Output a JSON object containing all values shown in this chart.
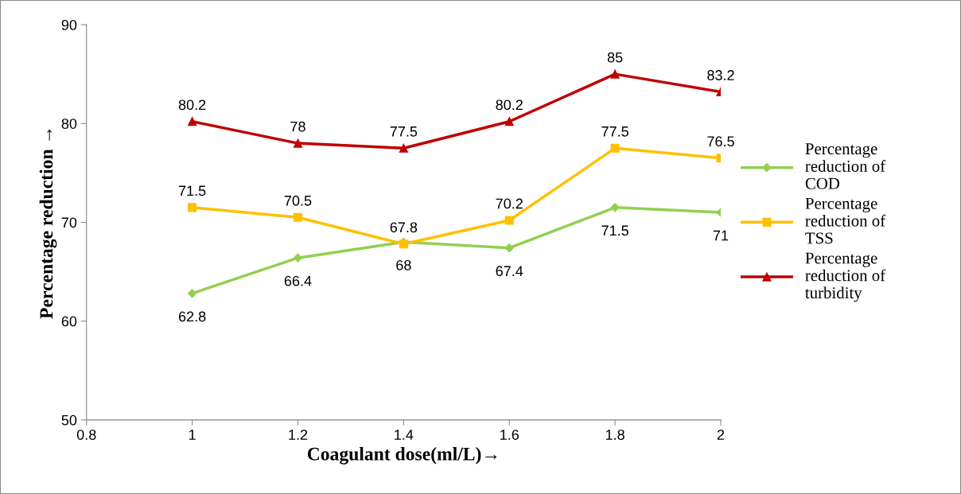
{
  "chart_data": {
    "type": "line",
    "xlabel": "Coagulant dose(ml/L)→",
    "ylabel": "Percentage reduction →",
    "x": [
      1,
      1.2,
      1.4,
      1.6,
      1.8,
      2
    ],
    "series": [
      {
        "name": "Percentage reduction of COD",
        "color": "#92d050",
        "marker": "diamond",
        "values": [
          62.8,
          66.4,
          68,
          67.4,
          71.5,
          71
        ]
      },
      {
        "name": "Percentage reduction of TSS",
        "color": "#ffc000",
        "marker": "square",
        "values": [
          71.5,
          70.5,
          67.8,
          70.2,
          77.5,
          76.5
        ]
      },
      {
        "name": "Percentage reduction of turbidity",
        "color": "#c00000",
        "marker": "triangle",
        "values": [
          80.2,
          78,
          77.5,
          80.2,
          85,
          83.2
        ]
      }
    ],
    "xlim": [
      0.8,
      2
    ],
    "xticks": [
      0.8,
      1,
      1.2,
      1.4,
      1.6,
      1.8,
      2
    ],
    "ylim": [
      50,
      90
    ],
    "yticks": [
      50,
      60,
      70,
      80,
      90
    ],
    "data_labels": true,
    "grid": false,
    "legend": "right",
    "line_style": "solid"
  }
}
